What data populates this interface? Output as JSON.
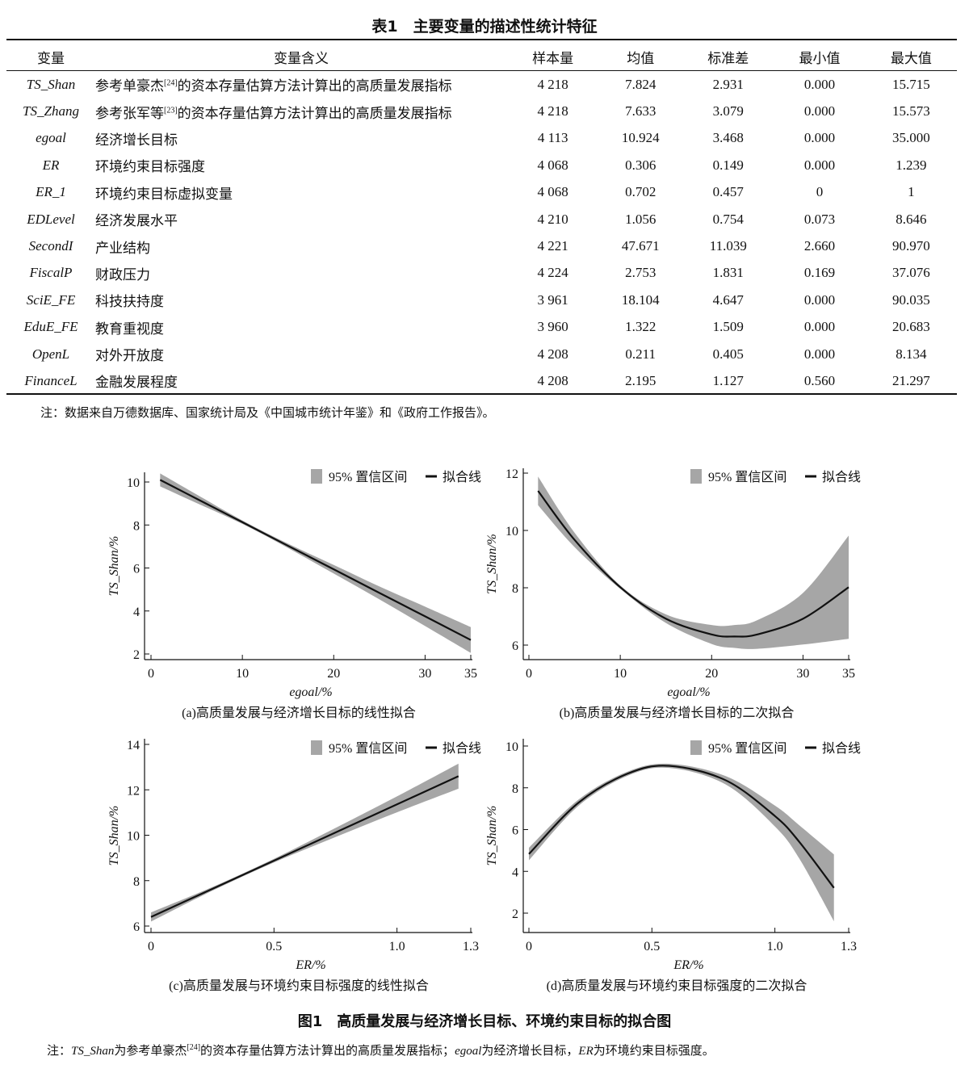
{
  "table": {
    "title": "表1　主要变量的描述性统计特征",
    "headers": [
      "变量",
      "变量含义",
      "样本量",
      "均值",
      "标准差",
      "最小值",
      "最大值"
    ],
    "rows": [
      {
        "var": "TS_Shan",
        "meaning": "参考单豪杰",
        "ref": "[24]",
        "meaning2": "的资本存量估算方法计算出的高质量发展指标",
        "n": "4 218",
        "mean": "7.824",
        "sd": "2.931",
        "min": "0.000",
        "max": "15.715"
      },
      {
        "var": "TS_Zhang",
        "meaning": "参考张军等",
        "ref": "[23]",
        "meaning2": "的资本存量估算方法计算出的高质量发展指标",
        "n": "4 218",
        "mean": "7.633",
        "sd": "3.079",
        "min": "0.000",
        "max": "15.573"
      },
      {
        "var": "egoal",
        "meaning": "经济增长目标",
        "ref": "",
        "meaning2": "",
        "n": "4 113",
        "mean": "10.924",
        "sd": "3.468",
        "min": "0.000",
        "max": "35.000"
      },
      {
        "var": "ER",
        "meaning": "环境约束目标强度",
        "ref": "",
        "meaning2": "",
        "n": "4 068",
        "mean": "0.306",
        "sd": "0.149",
        "min": "0.000",
        "max": "1.239"
      },
      {
        "var": "ER_1",
        "meaning": "环境约束目标虚拟变量",
        "ref": "",
        "meaning2": "",
        "n": "4 068",
        "mean": "0.702",
        "sd": "0.457",
        "min": "0",
        "max": "1"
      },
      {
        "var": "EDLevel",
        "meaning": "经济发展水平",
        "ref": "",
        "meaning2": "",
        "n": "4 210",
        "mean": "1.056",
        "sd": "0.754",
        "min": "0.073",
        "max": "8.646"
      },
      {
        "var": "SecondI",
        "meaning": "产业结构",
        "ref": "",
        "meaning2": "",
        "n": "4 221",
        "mean": "47.671",
        "sd": "11.039",
        "min": "2.660",
        "max": "90.970"
      },
      {
        "var": "FiscalP",
        "meaning": "财政压力",
        "ref": "",
        "meaning2": "",
        "n": "4 224",
        "mean": "2.753",
        "sd": "1.831",
        "min": "0.169",
        "max": "37.076"
      },
      {
        "var": "SciE_FE",
        "meaning": "科技扶持度",
        "ref": "",
        "meaning2": "",
        "n": "3 961",
        "mean": "18.104",
        "sd": "4.647",
        "min": "0.000",
        "max": "90.035"
      },
      {
        "var": "EduE_FE",
        "meaning": "教育重视度",
        "ref": "",
        "meaning2": "",
        "n": "3 960",
        "mean": "1.322",
        "sd": "1.509",
        "min": "0.000",
        "max": "20.683"
      },
      {
        "var": "OpenL",
        "meaning": "对外开放度",
        "ref": "",
        "meaning2": "",
        "n": "4 208",
        "mean": "0.211",
        "sd": "0.405",
        "min": "0.000",
        "max": "8.134"
      },
      {
        "var": "FinanceL",
        "meaning": "金融发展程度",
        "ref": "",
        "meaning2": "",
        "n": "4 208",
        "mean": "2.195",
        "sd": "1.127",
        "min": "0.560",
        "max": "21.297"
      }
    ],
    "note": "注：数据来自万德数据库、国家统计局及《中国城市统计年鉴》和《政府工作报告》。"
  },
  "figure": {
    "title": "图1　高质量发展与经济增长目标、环境约束目标的拟合图",
    "note_prefix": "注：",
    "note_var1": "TS_Shan",
    "note_text1": "为参考单豪杰",
    "note_ref": "[24]",
    "note_text2": "的资本存量估算方法计算出的高质量发展指标；",
    "note_var2": "egoal",
    "note_text3": "为经济增长目标，",
    "note_var3": "ER",
    "note_text4": "为环境约束目标强度。",
    "legend_ci": "95% 置信区间",
    "legend_fit": "拟合线"
  },
  "colors": {
    "band": "#a6a6a6",
    "line": "#111111"
  },
  "chart_data": [
    {
      "type": "line",
      "caption": "(a)高质量发展与经济增长目标的线性拟合",
      "xlabel": "egoal/%",
      "ylabel": "TS_Shan/%",
      "xticks": [
        0,
        10,
        20,
        30,
        35
      ],
      "yticks": [
        2,
        4,
        6,
        8,
        10
      ],
      "xlim": [
        0,
        35
      ],
      "ylim": [
        2,
        10
      ],
      "x": [
        1,
        5,
        10,
        15,
        20,
        25,
        30,
        35
      ],
      "fit": [
        10.1,
        9.22,
        8.13,
        7.03,
        5.94,
        4.84,
        3.75,
        2.65
      ],
      "lower": [
        9.8,
        9.02,
        8.05,
        6.93,
        5.74,
        4.54,
        3.3,
        2.05
      ],
      "upper": [
        10.4,
        9.42,
        8.21,
        7.13,
        6.14,
        5.14,
        4.2,
        3.25
      ]
    },
    {
      "type": "line",
      "caption": "(b)高质量发展与经济增长目标的二次拟合",
      "xlabel": "egoal/%",
      "ylabel": "TS_Shan/%",
      "xticks": [
        0,
        10,
        20,
        30,
        35
      ],
      "yticks": [
        6,
        8,
        10,
        12
      ],
      "xlim": [
        0,
        35
      ],
      "ylim": [
        6,
        12
      ],
      "x": [
        1,
        5,
        10,
        15,
        20,
        22.5,
        25,
        30,
        35
      ],
      "fit": [
        11.38,
        9.67,
        8.02,
        6.92,
        6.37,
        6.3,
        6.37,
        6.92,
        8.02
      ],
      "lower": [
        10.88,
        9.42,
        7.96,
        6.77,
        6.04,
        5.9,
        5.87,
        6.02,
        6.22
      ],
      "upper": [
        11.88,
        9.92,
        8.08,
        7.07,
        6.7,
        6.7,
        6.87,
        7.82,
        9.82
      ]
    },
    {
      "type": "line",
      "caption": "(c)高质量发展与环境约束目标强度的线性拟合",
      "xlabel": "ER/%",
      "ylabel": "TS_Shan/%",
      "xticks": [
        0,
        0.5,
        1.0,
        1.3
      ],
      "yticks": [
        6,
        8,
        10,
        12,
        14
      ],
      "xlim": [
        0,
        1.3
      ],
      "ylim": [
        6,
        14
      ],
      "x": [
        0,
        0.25,
        0.5,
        0.75,
        1.0,
        1.25
      ],
      "fit": [
        6.4,
        7.64,
        8.88,
        10.12,
        11.36,
        12.6
      ],
      "lower": [
        6.2,
        7.56,
        8.8,
        9.92,
        11.01,
        12.05
      ],
      "upper": [
        6.6,
        7.72,
        8.96,
        10.32,
        11.71,
        13.15
      ]
    },
    {
      "type": "line",
      "caption": "(d)高质量发展与环境约束目标强度的二次拟合",
      "xlabel": "ER/%",
      "ylabel": "TS_Shan/%",
      "xticks": [
        0,
        0.5,
        1.0,
        1.3
      ],
      "yticks": [
        2,
        4,
        6,
        8,
        10
      ],
      "xlim": [
        0,
        1.3
      ],
      "ylim": [
        2,
        10
      ],
      "x": [
        0,
        0.2,
        0.4,
        0.57,
        0.8,
        1.0,
        1.1,
        1.24
      ],
      "fit": [
        4.83,
        7.27,
        8.67,
        9.05,
        8.36,
        6.65,
        5.4,
        3.21
      ],
      "lower": [
        4.53,
        7.12,
        8.57,
        8.95,
        8.16,
        6.15,
        4.6,
        1.61
      ],
      "upper": [
        5.13,
        7.42,
        8.77,
        9.15,
        8.56,
        7.15,
        6.2,
        4.81
      ]
    }
  ]
}
